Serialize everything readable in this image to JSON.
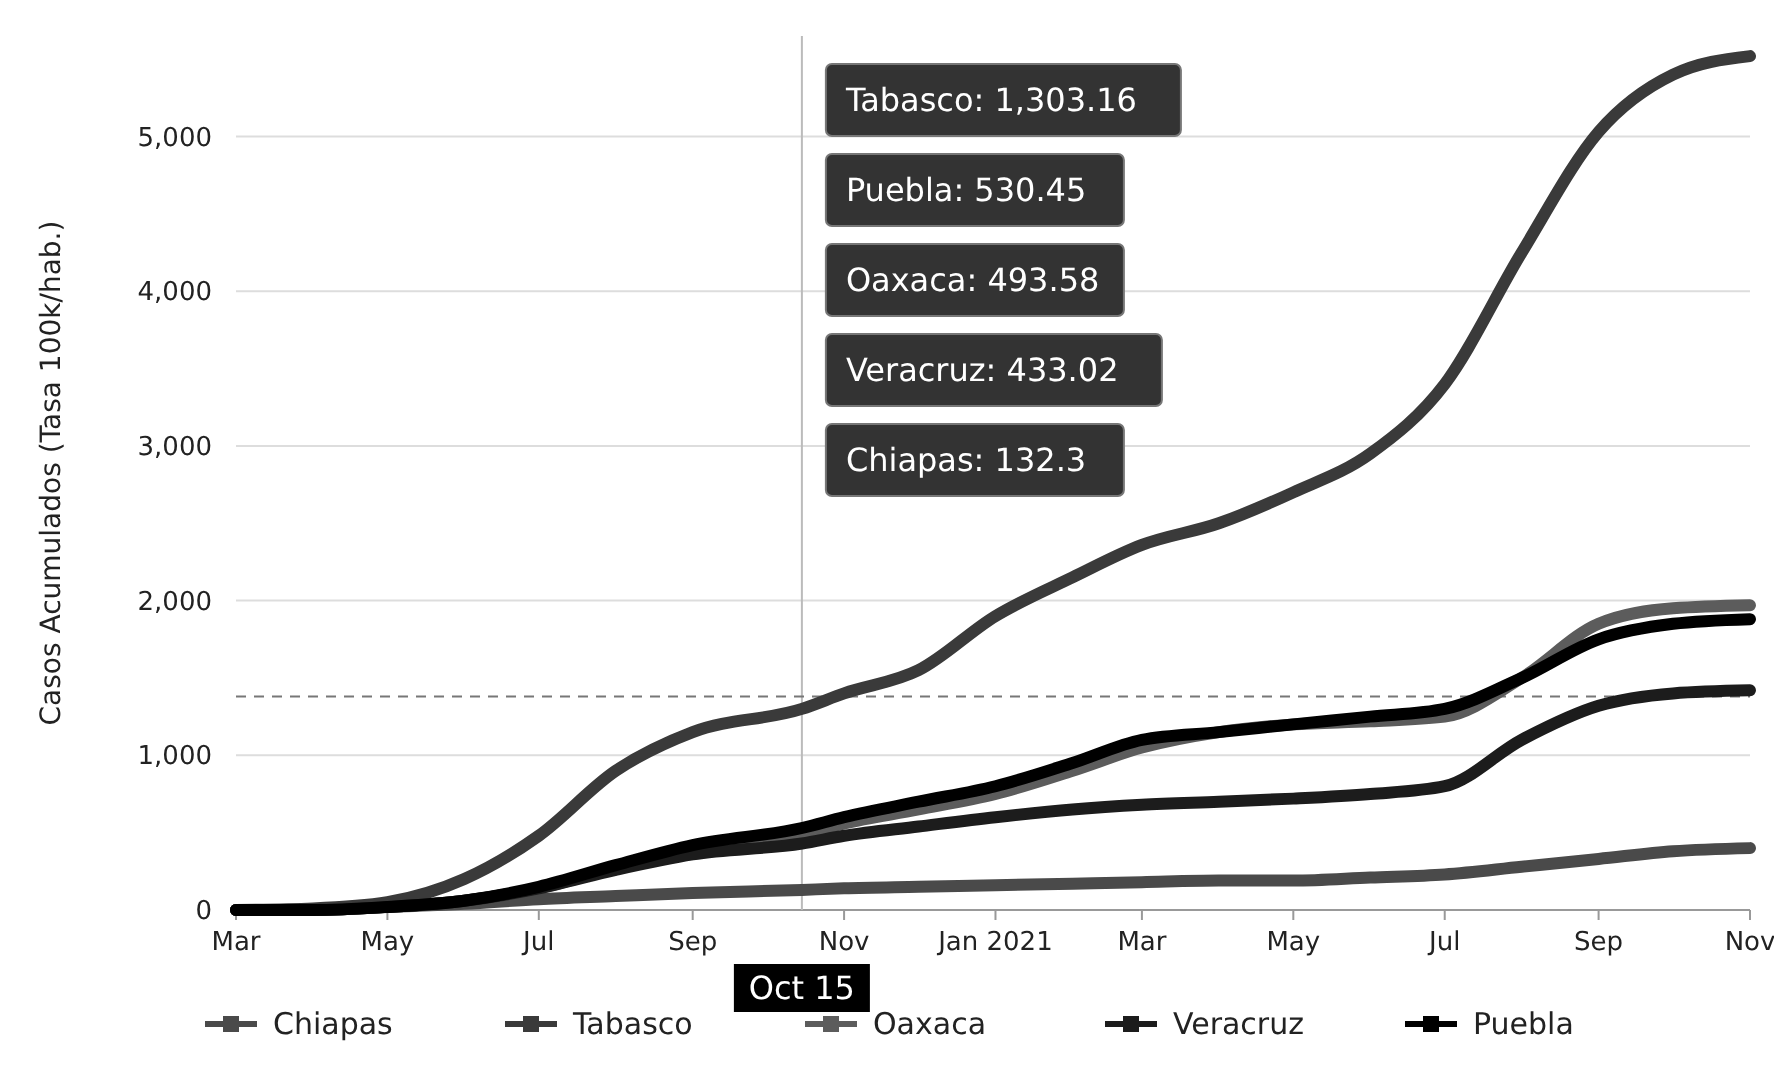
{
  "chart_data": {
    "type": "line",
    "ylabel": "Casos Acumulados (Tasa 100k/hab.)",
    "x": [
      "2020-03-01",
      "2020-04-01",
      "2020-05-01",
      "2020-06-01",
      "2020-07-01",
      "2020-08-01",
      "2020-09-01",
      "2020-10-15",
      "2020-11-01",
      "2020-12-01",
      "2021-01-01",
      "2021-02-01",
      "2021-03-01",
      "2021-04-01",
      "2021-05-01",
      "2021-06-01",
      "2021-07-01",
      "2021-08-01",
      "2021-09-01",
      "2021-10-01",
      "2021-11-01"
    ],
    "series": [
      {
        "name": "Chiapas",
        "color": "#4a4a4a",
        "values": [
          0,
          0,
          20,
          40,
          70,
          90,
          110,
          130,
          140,
          150,
          160,
          170,
          180,
          190,
          190,
          210,
          230,
          280,
          330,
          380,
          400
        ]
      },
      {
        "name": "Tabasco",
        "color": "#3a3a3a",
        "values": [
          0,
          10,
          50,
          200,
          480,
          900,
          1150,
          1300,
          1400,
          1550,
          1900,
          2150,
          2360,
          2500,
          2700,
          2950,
          3400,
          4250,
          5030,
          5400,
          5520
        ]
      },
      {
        "name": "Oaxaca",
        "color": "#5c5c5c",
        "values": [
          0,
          0,
          20,
          60,
          140,
          270,
          390,
          490,
          560,
          650,
          750,
          900,
          1050,
          1150,
          1200,
          1220,
          1250,
          1500,
          1850,
          1950,
          1970
        ]
      },
      {
        "name": "Veracruz",
        "color": "#1c1c1c",
        "values": [
          0,
          0,
          20,
          60,
          140,
          260,
          360,
          430,
          480,
          540,
          600,
          650,
          680,
          700,
          720,
          750,
          800,
          1100,
          1320,
          1400,
          1420
        ]
      },
      {
        "name": "Puebla",
        "color": "#000000",
        "values": [
          0,
          0,
          20,
          60,
          150,
          290,
          420,
          530,
          600,
          700,
          800,
          950,
          1100,
          1150,
          1200,
          1250,
          1300,
          1500,
          1750,
          1850,
          1880
        ]
      }
    ],
    "xlim": [
      "2020-03-01",
      "2021-11-01"
    ],
    "xticks": [
      {
        "value": "2020-03-01",
        "label": "Mar"
      },
      {
        "value": "2020-05-01",
        "label": "May"
      },
      {
        "value": "2020-07-01",
        "label": "Jul"
      },
      {
        "value": "2020-09-01",
        "label": "Sep"
      },
      {
        "value": "2020-11-01",
        "label": "Nov"
      },
      {
        "value": "2021-01-01",
        "label": "Jan 2021"
      },
      {
        "value": "2021-03-01",
        "label": "Mar"
      },
      {
        "value": "2021-05-01",
        "label": "May"
      },
      {
        "value": "2021-07-01",
        "label": "Jul"
      },
      {
        "value": "2021-09-01",
        "label": "Sep"
      },
      {
        "value": "2021-11-01",
        "label": "Nov"
      }
    ],
    "ylim": [
      0,
      5650
    ],
    "yticks": [
      {
        "value": 0,
        "label": "0"
      },
      {
        "value": 1000,
        "label": "1,000"
      },
      {
        "value": 2000,
        "label": "2,000"
      },
      {
        "value": 3000,
        "label": "3,000"
      },
      {
        "value": 4000,
        "label": "4,000"
      },
      {
        "value": 5000,
        "label": "5,000"
      }
    ],
    "grid": "y",
    "legend": "bottom",
    "marker": "none",
    "line_style": "solid",
    "ref_lines": [
      {
        "axis": "x",
        "value": "2020-10-15",
        "label": "Oct 15"
      },
      {
        "axis": "y",
        "value": 1380,
        "label": null,
        "line_style": "dashed"
      }
    ],
    "annotations": [
      "Tabasco: 1,303.16",
      "Puebla: 530.45",
      "Oaxaca: 493.58",
      "Veracruz: 433.02",
      "Chiapas: 132.3"
    ]
  }
}
